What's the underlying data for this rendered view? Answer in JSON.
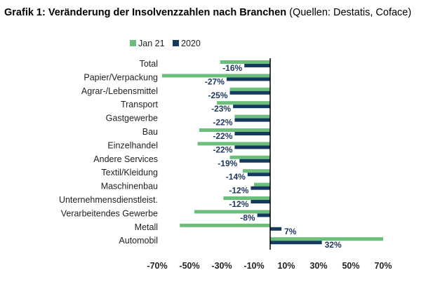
{
  "title_bold": "Grafik 1: Veränderung der Insolvenzzahlen nach Branchen",
  "title_normal": " (Quellen: Destatis, Coface)",
  "colors": {
    "jan21": "#6bbf7a",
    "y2020": "#163a5f",
    "axis": "#000000",
    "data_label": "#1f3864"
  },
  "chart_data": {
    "type": "bar",
    "orientation": "horizontal",
    "title": "Veränderung der Insolvenzzahlen nach Branchen",
    "categories": [
      "Total",
      "Papier/Verpackung",
      "Agrar-/Lebensmittel",
      "Transport",
      "Gastgewerbe",
      "Bau",
      "Einzelhandel",
      "Andere Services",
      "Textil/Kleidung",
      "Maschinenbau",
      "Unternehmensdienstleist.",
      "Verarbeitendes Gewerbe",
      "Metall",
      "Automobil"
    ],
    "series": [
      {
        "name": "Jan 21",
        "values": [
          -31,
          -67,
          -25,
          -33,
          -22,
          -44,
          -45,
          -25,
          -17,
          -10,
          -29,
          -47,
          -56,
          70
        ]
      },
      {
        "name": "2020",
        "values": [
          -16,
          -27,
          -25,
          -23,
          -22,
          -22,
          -22,
          -19,
          -14,
          -12,
          -12,
          -8,
          7,
          32
        ]
      }
    ],
    "data_labels": [
      "-16%",
      "-27%",
      "-25%",
      "-23%",
      "-22%",
      "-22%",
      "-22%",
      "-19%",
      "-14%",
      "-12%",
      "-12%",
      "-8%",
      "7%",
      "32%"
    ],
    "xlim": [
      -70,
      70
    ],
    "x_ticks": [
      -70,
      -50,
      -30,
      -10,
      10,
      30,
      50,
      70
    ],
    "x_tick_labels": [
      "-70%",
      "-50%",
      "-30%",
      "-10%",
      "10%",
      "30%",
      "50%",
      "70%"
    ],
    "legend": [
      "Jan 21",
      "2020"
    ],
    "legend_position": "top"
  }
}
